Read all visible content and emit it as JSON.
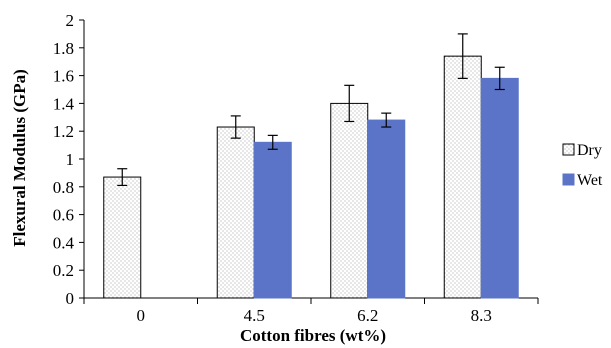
{
  "chart_data": {
    "type": "bar",
    "title": "",
    "xlabel": "Cotton fibres (wt%)",
    "ylabel": "Flexural Modulus (GPa)",
    "ylim": [
      0,
      2
    ],
    "ytick_step": 0.2,
    "yticks": [
      "0",
      "0.2",
      "0.4",
      "0.6",
      "0.8",
      "1",
      "1.2",
      "1.4",
      "1.6",
      "1.8",
      "2"
    ],
    "categories": [
      "0",
      "4.5",
      "6.2",
      "8.3"
    ],
    "series": [
      {
        "name": "Dry",
        "color": "#ffffff",
        "pattern": "dotted",
        "values": [
          0.87,
          1.23,
          1.4,
          1.74
        ],
        "errors": [
          0.06,
          0.08,
          0.13,
          0.16
        ]
      },
      {
        "name": "Wet",
        "color": "#5b74c8",
        "values": [
          null,
          1.12,
          1.28,
          1.58
        ],
        "errors": [
          null,
          0.05,
          0.05,
          0.08
        ]
      }
    ],
    "grid": false,
    "legend_position": "right"
  }
}
